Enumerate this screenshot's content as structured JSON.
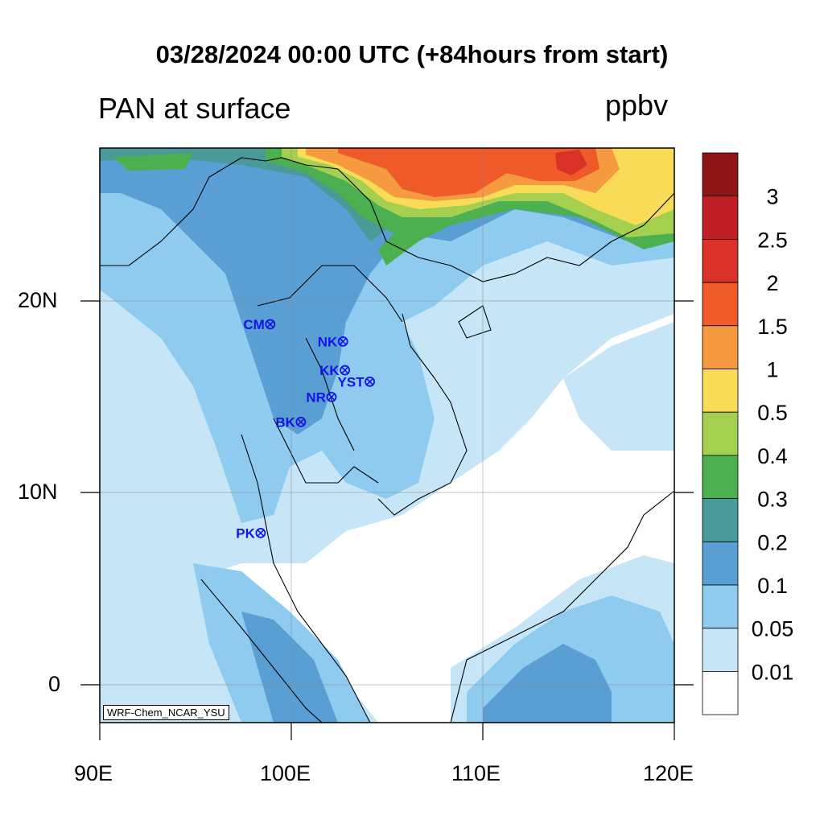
{
  "title": "03/28/2024 00:00 UTC (+84hours from start)",
  "variable_label": "PAN at surface",
  "units": "ppbv",
  "model_tag": "WRF-Chem_NCAR_YSU",
  "x_ticks": [
    "90E",
    "100E",
    "110E",
    "120E"
  ],
  "y_ticks": [
    "20N",
    "10N",
    "0"
  ],
  "extent": {
    "lon": [
      90,
      120
    ],
    "lat": [
      -2,
      28
    ]
  },
  "colorbar": {
    "labels": [
      "3",
      "2.5",
      "2",
      "1.5",
      "1",
      "0.5",
      "0.4",
      "0.3",
      "0.2",
      "0.1",
      "0.05",
      "0.01"
    ],
    "colors": [
      "#8e1418",
      "#bd1f25",
      "#da3128",
      "#ee5a2a",
      "#f59a3f",
      "#f8db56",
      "#a5cf4e",
      "#4caf50",
      "#4a9a9a",
      "#5a9fd4",
      "#8ecbef",
      "#c6e6f7",
      "#ffffff"
    ]
  },
  "stations": [
    {
      "code": "CM",
      "lon": 98.9,
      "lat": 18.8
    },
    {
      "code": "NK",
      "lon": 102.7,
      "lat": 17.9
    },
    {
      "code": "KK",
      "lon": 102.8,
      "lat": 16.4
    },
    {
      "code": "YST",
      "lon": 104.1,
      "lat": 15.8
    },
    {
      "code": "NR",
      "lon": 102.1,
      "lat": 15.0
    },
    {
      "code": "BK",
      "lon": 100.5,
      "lat": 13.7
    },
    {
      "code": "PK",
      "lon": 98.4,
      "lat": 7.9
    }
  ],
  "marker_color": "#1414e6"
}
